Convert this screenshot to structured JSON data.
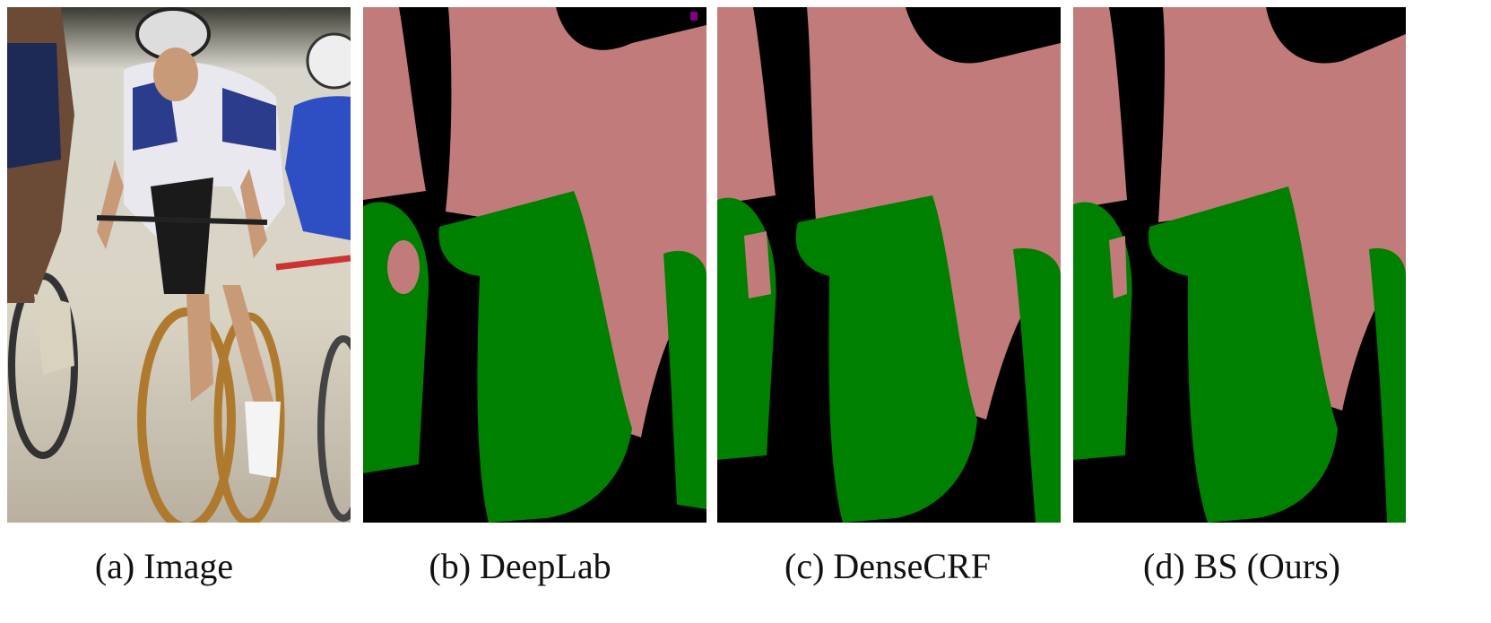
{
  "figure": {
    "panels": [
      {
        "caption": "(a) Image"
      },
      {
        "caption": "(b) DeepLab"
      },
      {
        "caption": "(c) DenseCRF"
      },
      {
        "caption": "(d) BS (Ours)"
      }
    ]
  }
}
